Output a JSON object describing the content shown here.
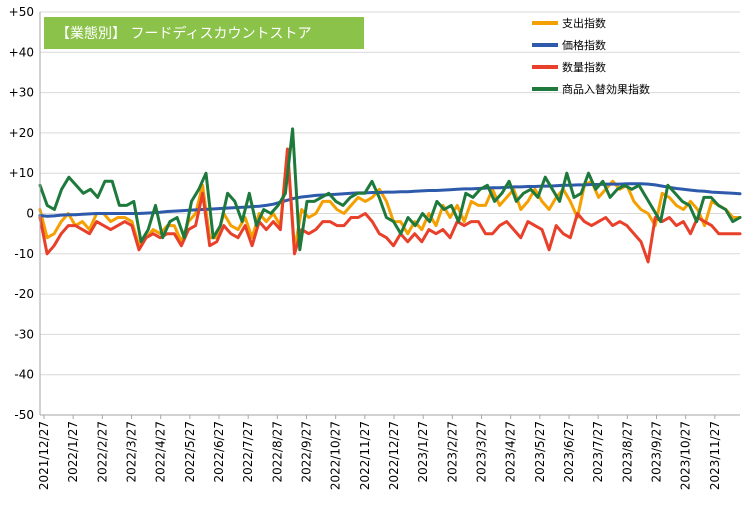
{
  "chart_data": {
    "type": "line",
    "title": "【業態別】 フードディスカウントストア",
    "xlabel": "",
    "ylabel": "",
    "ylim": [
      -50,
      50
    ],
    "y_ticks": [
      "+50",
      "+40",
      "+30",
      "+20",
      "+10",
      "0",
      "-10",
      "-20",
      "-30",
      "-40",
      "-50"
    ],
    "y_tick_values": [
      50,
      40,
      30,
      20,
      10,
      0,
      -10,
      -20,
      -30,
      -40,
      -50
    ],
    "x_tick_labels": [
      "2021/12/27",
      "2022/1/27",
      "2022/2/27",
      "2022/3/27",
      "2022/4/27",
      "2022/5/27",
      "2022/6/27",
      "2022/7/27",
      "2022/8/27",
      "2022/9/27",
      "2022/10/27",
      "2022/11/27",
      "2022/12/27",
      "2023/1/27",
      "2023/2/27",
      "2023/3/27",
      "2023/4/27",
      "2023/5/27",
      "2023/6/27",
      "2023/7/27",
      "2023/8/27",
      "2023/9/27",
      "2023/10/27",
      "2023/11/27"
    ],
    "grid": "horizontal",
    "legend_position": "top-right",
    "series": [
      {
        "name": "支出指数",
        "color": "#F5A000",
        "values": [
          1,
          -6,
          -5,
          -2,
          0,
          -3,
          -2,
          -4,
          0,
          0,
          -2,
          -1,
          -1,
          -2,
          -8,
          -6,
          -4,
          -5,
          -3,
          -3,
          -7,
          -2,
          0,
          7,
          -6,
          -6,
          0,
          -3,
          -4,
          -1,
          -6,
          0,
          -2,
          0,
          -3,
          16,
          -9,
          1,
          -1,
          0,
          3,
          3,
          1,
          0,
          2,
          4,
          3,
          4,
          6,
          3,
          -2,
          -2,
          -5,
          -2,
          -4,
          0,
          -3,
          2,
          -1,
          2,
          -2,
          3,
          2,
          2,
          6,
          2,
          4,
          6,
          1,
          3,
          6,
          3,
          1,
          4,
          6,
          3,
          -1,
          7,
          8,
          4,
          6,
          8,
          6,
          7,
          3,
          1,
          0,
          -3,
          5,
          4,
          2,
          1,
          3,
          1,
          -3,
          3,
          2,
          1,
          -1,
          -1
        ]
      },
      {
        "name": "価格指数",
        "color": "#2E5AAC",
        "values": [
          -0.5,
          -0.7,
          -0.6,
          -0.4,
          -0.3,
          -0.3,
          -0.2,
          -0.1,
          0,
          0,
          0,
          0,
          0,
          0,
          0,
          0.1,
          0.2,
          0.3,
          0.5,
          0.6,
          0.7,
          0.8,
          0.9,
          1.0,
          1.1,
          1.2,
          1.3,
          1.4,
          1.5,
          1.6,
          1.7,
          1.8,
          2.0,
          2.3,
          2.8,
          3.3,
          3.8,
          4.1,
          4.3,
          4.5,
          4.6,
          4.7,
          4.8,
          4.9,
          5.0,
          5.1,
          5.1,
          5.2,
          5.2,
          5.3,
          5.3,
          5.4,
          5.4,
          5.5,
          5.6,
          5.7,
          5.7,
          5.8,
          5.9,
          6.0,
          6.1,
          6.1,
          6.2,
          6.3,
          6.4,
          6.4,
          6.5,
          6.6,
          6.6,
          6.7,
          6.7,
          6.8,
          6.8,
          6.9,
          7.0,
          7.0,
          7.1,
          7.1,
          7.2,
          7.2,
          7.3,
          7.3,
          7.3,
          7.4,
          7.4,
          7.4,
          7.3,
          7.1,
          6.8,
          6.5,
          6.2,
          6.0,
          5.8,
          5.6,
          5.5,
          5.3,
          5.2,
          5.1,
          5.0,
          4.9
        ]
      },
      {
        "name": "数量指数",
        "color": "#E8402A",
        "values": [
          -1,
          -10,
          -8,
          -5,
          -3,
          -3,
          -4,
          -5,
          -2,
          -3,
          -4,
          -3,
          -2,
          -3,
          -9,
          -6,
          -5,
          -6,
          -5,
          -5,
          -8,
          -4,
          -3,
          5,
          -8,
          -7,
          -3,
          -5,
          -6,
          -3,
          -8,
          -2,
          -4,
          -2,
          -4,
          16,
          -10,
          -4,
          -5,
          -4,
          -2,
          -2,
          -3,
          -3,
          -1,
          -1,
          0,
          -2,
          -5,
          -6,
          -8,
          -5,
          -7,
          -5,
          -7,
          -4,
          -5,
          -4,
          -6,
          -2,
          -3,
          -2,
          -2,
          -5,
          -5,
          -3,
          -2,
          -4,
          -6,
          -2,
          -3,
          -4,
          -9,
          -3,
          -5,
          -6,
          0,
          -2,
          -3,
          -2,
          -1,
          -3,
          -2,
          -3,
          -5,
          -7,
          -12,
          -1,
          -2,
          -1,
          -3,
          -2,
          -5,
          -1,
          -2,
          -3,
          -5,
          -5,
          -5,
          -5
        ]
      },
      {
        "name": "商品入替効果指数",
        "color": "#1E7A3C",
        "values": [
          7,
          2,
          1,
          6,
          9,
          7,
          5,
          6,
          4,
          8,
          8,
          2,
          2,
          3,
          -7,
          -4,
          2,
          -6,
          -2,
          -1,
          -6,
          3,
          6,
          10,
          -6,
          -3,
          5,
          3,
          -2,
          5,
          -3,
          1,
          0,
          2,
          5,
          21,
          -9,
          3,
          3,
          4,
          5,
          3,
          2,
          4,
          5,
          5,
          8,
          4,
          -1,
          -2,
          -5,
          -1,
          -3,
          0,
          -2,
          3,
          1,
          2,
          -2,
          5,
          4,
          6,
          7,
          3,
          5,
          8,
          3,
          5,
          6,
          4,
          9,
          6,
          3,
          10,
          4,
          5,
          10,
          6,
          8,
          4,
          6,
          7,
          6,
          7,
          4,
          1,
          -2,
          7,
          5,
          3,
          2,
          -2,
          4,
          4,
          2,
          1,
          -2,
          -1
        ]
      }
    ]
  }
}
